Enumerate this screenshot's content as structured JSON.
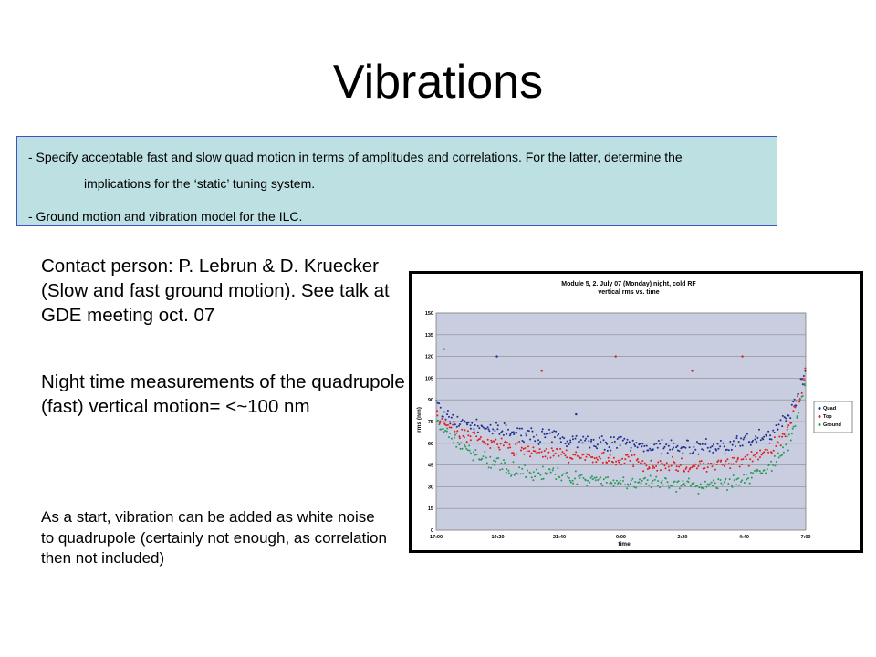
{
  "slide": {
    "title": "Vibrations",
    "box": {
      "line1": "- Specify acceptable fast and slow quad motion in terms of amplitudes and correlations. For the latter,  determine the",
      "line2": "implications for the ‘static’ tuning system.",
      "line3": "- Ground motion and vibration model for the ILC."
    },
    "contact": "Contact person: P. Lebrun & D. Kruecker (Slow and fast ground motion). See talk at GDE meeting oct. 07",
    "night": "Night time measurements of the quadrupole (fast) vertical motion= <~100 nm",
    "start": "As a start, vibration can be added as white noise to quadrupole (certainly not enough, as correlation then not included)"
  },
  "chart_data": {
    "type": "scatter",
    "title": "Module 5, 2. July 07 (Monday) night, cold RF",
    "subtitle": "vertical rms vs. time",
    "xlabel": "time",
    "ylabel": "rms (nm)",
    "x_ticks": [
      "17:00",
      "19:20",
      "21:40",
      "0:00",
      "2:20",
      "4:40",
      "7:00"
    ],
    "y_ticks": [
      0,
      15,
      30,
      45,
      60,
      75,
      90,
      105,
      120,
      135,
      150
    ],
    "xlim": [
      0,
      14
    ],
    "ylim": [
      0,
      150
    ],
    "grid": true,
    "legend_position": "right",
    "series": [
      {
        "name": "Quad",
        "color": "#1f2f8f",
        "x": [
          0,
          0.25,
          0.5,
          0.75,
          1,
          1.5,
          2,
          2.5,
          3,
          3.5,
          4,
          4.5,
          5,
          5.5,
          6,
          6.5,
          7,
          7.5,
          8,
          8.5,
          9,
          9.5,
          10,
          10.5,
          11,
          11.5,
          12,
          12.5,
          12.75,
          13,
          13.25,
          13.5,
          13.75,
          14
        ],
        "y": [
          88,
          80,
          77,
          75,
          74,
          72,
          70,
          68,
          67,
          66,
          65,
          64,
          63,
          62,
          61,
          60,
          60,
          59,
          58,
          58,
          57,
          57,
          57,
          58,
          58,
          60,
          63,
          66,
          68,
          72,
          78,
          85,
          97,
          110
        ]
      },
      {
        "name": "Top",
        "color": "#e02020",
        "x": [
          0,
          0.25,
          0.5,
          0.75,
          1,
          1.5,
          2,
          2.5,
          3,
          3.5,
          4,
          4.5,
          5,
          5.5,
          6,
          6.5,
          7,
          7.5,
          8,
          8.5,
          9,
          9.5,
          10,
          10.5,
          11,
          11.5,
          12,
          12.5,
          12.75,
          13,
          13.25,
          13.5,
          13.75,
          14
        ],
        "y": [
          82,
          76,
          72,
          69,
          67,
          64,
          61,
          58,
          56,
          55,
          54,
          53,
          52,
          51,
          50,
          49,
          48,
          47,
          46,
          45,
          45,
          44,
          44,
          45,
          46,
          47,
          50,
          54,
          57,
          62,
          68,
          78,
          93,
          108
        ]
      },
      {
        "name": "Ground",
        "color": "#2a9a5a",
        "x": [
          0,
          0.25,
          0.5,
          0.75,
          1,
          1.5,
          2,
          2.5,
          3,
          3.5,
          4,
          4.5,
          5,
          5.5,
          6,
          6.5,
          7,
          7.5,
          8,
          8.5,
          9,
          9.5,
          10,
          10.5,
          11,
          11.5,
          12,
          12.5,
          12.75,
          13,
          13.25,
          13.5,
          13.75,
          14
        ],
        "y": [
          78,
          70,
          65,
          60,
          57,
          52,
          48,
          45,
          42,
          40,
          39,
          38,
          37,
          36,
          35,
          34,
          33,
          33,
          32,
          32,
          31,
          31,
          31,
          32,
          33,
          35,
          38,
          42,
          45,
          50,
          57,
          68,
          85,
          102
        ]
      }
    ],
    "outliers": [
      {
        "series": "Quad",
        "x": [
          2.3,
          5.3
        ],
        "y": [
          120,
          80
        ]
      },
      {
        "series": "Top",
        "x": [
          4.0,
          6.8,
          9.7,
          11.6
        ],
        "y": [
          110,
          120,
          110,
          120
        ]
      },
      {
        "series": "Ground",
        "x": [
          0.3
        ],
        "y": [
          125
        ]
      }
    ]
  }
}
